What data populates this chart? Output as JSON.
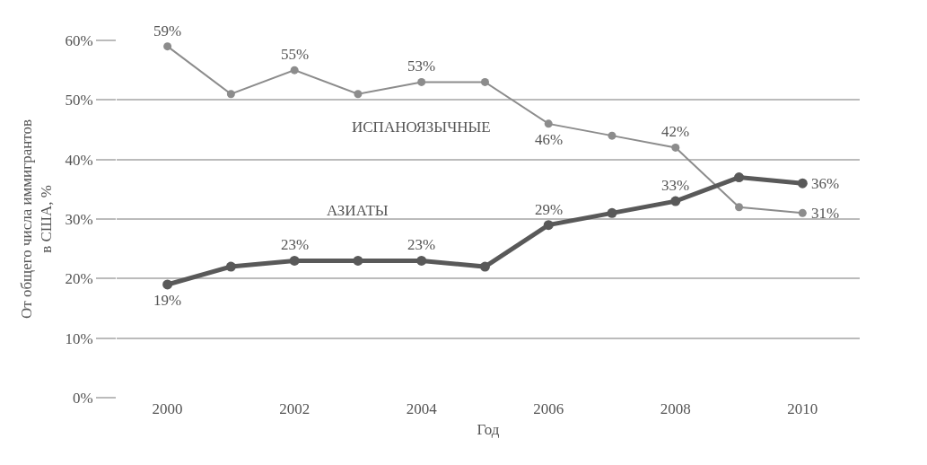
{
  "chart_data": {
    "type": "line",
    "xlabel": "Год",
    "ylabel": "От общего числа иммигрантов\nв США, %",
    "x": [
      2000,
      2001,
      2002,
      2003,
      2004,
      2005,
      2006,
      2007,
      2008,
      2009,
      2010
    ],
    "series": [
      {
        "name": "ИСПАНОЯЗЫЧНЫЕ",
        "color": "#8c8c8c",
        "values": [
          59,
          51,
          55,
          51,
          53,
          53,
          46,
          44,
          42,
          32,
          31
        ],
        "value_labels": [
          "59%",
          null,
          "55%",
          null,
          "53%",
          null,
          "46%",
          null,
          "42%",
          null,
          "31%"
        ]
      },
      {
        "name": "АЗИАТЫ",
        "color": "#595959",
        "values": [
          19,
          22,
          23,
          23,
          23,
          22,
          29,
          31,
          33,
          37,
          36
        ],
        "value_labels": [
          "19%",
          null,
          "23%",
          null,
          "23%",
          null,
          "29%",
          null,
          "33%",
          null,
          "36%"
        ]
      }
    ],
    "xlim": [
      1999.2,
      2010.9
    ],
    "xticks": [
      2000,
      2002,
      2004,
      2006,
      2008,
      2010
    ],
    "ylim": [
      0,
      60
    ],
    "yticks": [
      {
        "value": 0,
        "label": "0%"
      },
      {
        "value": 10,
        "label": "10%"
      },
      {
        "value": 20,
        "label": "20%"
      },
      {
        "value": 30,
        "label": "30%"
      },
      {
        "value": 40,
        "label": "40%"
      },
      {
        "value": 50,
        "label": "50%"
      },
      {
        "value": 60,
        "label": "60%"
      }
    ],
    "grid": "y",
    "legend": false,
    "marker": "circle",
    "line_style": "solid"
  }
}
